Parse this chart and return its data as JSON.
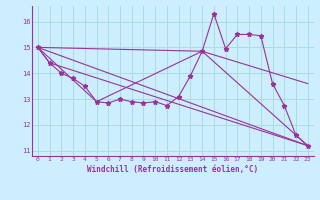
{
  "xlabel": "Windchill (Refroidissement éolien,°C)",
  "background_color": "#cceeff",
  "grid_color": "#aadddd",
  "line_color": "#993399",
  "xlim": [
    -0.5,
    23.5
  ],
  "ylim": [
    10.8,
    16.6
  ],
  "yticks": [
    11,
    12,
    13,
    14,
    15,
    16
  ],
  "xticks": [
    0,
    1,
    2,
    3,
    4,
    5,
    6,
    7,
    8,
    9,
    10,
    11,
    12,
    13,
    14,
    15,
    16,
    17,
    18,
    19,
    20,
    21,
    22,
    23
  ],
  "series": [
    {
      "x": [
        0,
        1,
        2,
        3,
        4,
        5,
        6,
        7,
        8,
        9,
        10,
        11,
        12,
        13,
        14,
        15,
        16,
        17,
        18,
        19,
        20,
        21,
        22,
        23
      ],
      "y": [
        15.0,
        14.4,
        14.0,
        13.8,
        13.5,
        12.9,
        12.85,
        13.0,
        12.9,
        12.85,
        12.9,
        12.75,
        13.1,
        13.9,
        14.85,
        16.3,
        14.95,
        15.5,
        15.5,
        15.45,
        13.6,
        12.75,
        11.6,
        11.2
      ],
      "marker": true
    },
    {
      "x": [
        0,
        23
      ],
      "y": [
        15.0,
        11.2
      ],
      "marker": false
    },
    {
      "x": [
        0,
        14,
        23
      ],
      "y": [
        15.0,
        14.85,
        13.6
      ],
      "marker": false
    },
    {
      "x": [
        0,
        5,
        14,
        23
      ],
      "y": [
        15.0,
        12.9,
        14.85,
        11.2
      ],
      "marker": false
    },
    {
      "x": [
        0,
        1,
        23
      ],
      "y": [
        15.0,
        14.4,
        11.2
      ],
      "marker": false
    }
  ]
}
